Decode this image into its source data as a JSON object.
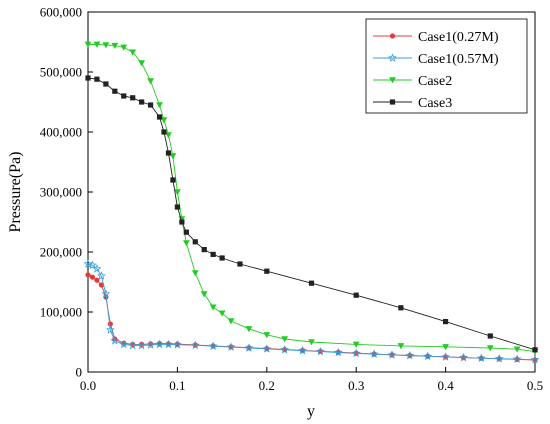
{
  "chart_data": {
    "type": "scatter",
    "title": "",
    "xlabel": "y",
    "ylabel": "Pressure(Pa)",
    "xlim": [
      0,
      0.5
    ],
    "ylim": [
      0,
      600000
    ],
    "grid": false,
    "legend_position": "top-right",
    "x_ticks": [
      {
        "value": 0.0,
        "label": "0.0"
      },
      {
        "value": 0.1,
        "label": "0.1"
      },
      {
        "value": 0.2,
        "label": "0.2"
      },
      {
        "value": 0.3,
        "label": "0.3"
      },
      {
        "value": 0.4,
        "label": "0.4"
      },
      {
        "value": 0.5,
        "label": "0.5"
      }
    ],
    "y_ticks": [
      {
        "value": 0,
        "label": "0"
      },
      {
        "value": 100000,
        "label": "100,000"
      },
      {
        "value": 200000,
        "label": "200,000"
      },
      {
        "value": 300000,
        "label": "300,000"
      },
      {
        "value": 400000,
        "label": "400,000"
      },
      {
        "value": 500000,
        "label": "500,000"
      },
      {
        "value": 600000,
        "label": "600,000"
      }
    ],
    "series": [
      {
        "name": "Case1(0.27M)",
        "color": "#e03c3c",
        "marker": "circle",
        "x": [
          0.0,
          0.005,
          0.01,
          0.015,
          0.02,
          0.025,
          0.03,
          0.04,
          0.05,
          0.06,
          0.07,
          0.08,
          0.09,
          0.1,
          0.12,
          0.14,
          0.16,
          0.18,
          0.2,
          0.22,
          0.24,
          0.26,
          0.28,
          0.3,
          0.32,
          0.34,
          0.36,
          0.38,
          0.4,
          0.42,
          0.44,
          0.46,
          0.48,
          0.5
        ],
        "y": [
          162000,
          158000,
          153000,
          145000,
          125000,
          80000,
          55000,
          48000,
          46000,
          46000,
          47000,
          47500,
          47000,
          46500,
          45000,
          43500,
          42000,
          40500,
          39000,
          37500,
          36000,
          34500,
          33000,
          31500,
          30000,
          28700,
          27500,
          26300,
          25200,
          24000,
          23000,
          22000,
          21000,
          20000
        ]
      },
      {
        "name": "Case1(0.57M)",
        "color": "#3aa0dc",
        "marker": "star",
        "x": [
          0.0,
          0.005,
          0.01,
          0.015,
          0.02,
          0.025,
          0.03,
          0.04,
          0.05,
          0.06,
          0.07,
          0.08,
          0.09,
          0.1,
          0.12,
          0.14,
          0.16,
          0.18,
          0.2,
          0.22,
          0.24,
          0.26,
          0.28,
          0.3,
          0.32,
          0.34,
          0.36,
          0.38,
          0.4,
          0.42,
          0.44,
          0.46,
          0.48,
          0.5
        ],
        "y": [
          180000,
          178000,
          172000,
          160000,
          130000,
          70000,
          52000,
          46000,
          44000,
          44000,
          45000,
          46000,
          46000,
          45500,
          44500,
          43000,
          41500,
          40000,
          38500,
          37000,
          35500,
          34000,
          32500,
          31000,
          29700,
          28500,
          27300,
          26200,
          25100,
          24000,
          23000,
          22200,
          21400,
          20500
        ]
      },
      {
        "name": "Case2",
        "color": "#22cc22",
        "marker": "triangle-down",
        "x": [
          0.0,
          0.01,
          0.02,
          0.03,
          0.04,
          0.05,
          0.06,
          0.07,
          0.08,
          0.085,
          0.09,
          0.095,
          0.1,
          0.105,
          0.11,
          0.12,
          0.13,
          0.14,
          0.15,
          0.16,
          0.18,
          0.2,
          0.22,
          0.25,
          0.3,
          0.35,
          0.4,
          0.45,
          0.48,
          0.5
        ],
        "y": [
          546000,
          546000,
          545000,
          544000,
          541000,
          533000,
          515000,
          485000,
          445000,
          420000,
          395000,
          360000,
          300000,
          255000,
          215000,
          165000,
          130000,
          108000,
          98000,
          85000,
          72000,
          62000,
          55000,
          50000,
          46000,
          43500,
          42000,
          40000,
          38000,
          34000
        ]
      },
      {
        "name": "Case3",
        "color": "#222222",
        "marker": "square",
        "x": [
          0.0,
          0.01,
          0.02,
          0.03,
          0.04,
          0.05,
          0.06,
          0.07,
          0.08,
          0.085,
          0.09,
          0.095,
          0.1,
          0.105,
          0.11,
          0.12,
          0.13,
          0.14,
          0.15,
          0.17,
          0.2,
          0.25,
          0.3,
          0.35,
          0.4,
          0.45,
          0.5
        ],
        "y": [
          490000,
          488000,
          480000,
          468000,
          460000,
          457000,
          450000,
          445000,
          425000,
          400000,
          365000,
          320000,
          275000,
          250000,
          233000,
          217000,
          204000,
          196000,
          190000,
          180000,
          168000,
          148000,
          128000,
          107000,
          84000,
          60000,
          37000
        ]
      }
    ]
  }
}
